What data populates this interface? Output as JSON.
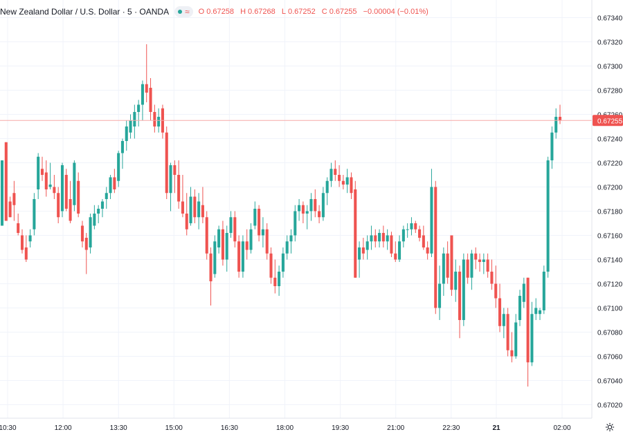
{
  "legend": {
    "title": "New Zealand Dollar / U.S. Dollar · 5 · OANDA",
    "open_label": "O",
    "open": "0.67258",
    "high_label": "H",
    "high": "0.67268",
    "low_label": "L",
    "low": "0.67252",
    "close_label": "C",
    "close": "0.67255",
    "change": "−0.00004 (−0.01%)"
  },
  "colors": {
    "up": "#26a69a",
    "down": "#ef5350",
    "grid": "#f0f3fa",
    "text": "#131722"
  },
  "chart_data": {
    "type": "candlestick",
    "symbol": "NZDUSD",
    "interval": "5",
    "source": "OANDA",
    "ylim": [
      0.6701,
      0.6735
    ],
    "y_ticks": [
      0.6702,
      0.6704,
      0.6706,
      0.6708,
      0.671,
      0.6712,
      0.6714,
      0.6716,
      0.6718,
      0.672,
      0.6722,
      0.6724,
      0.6726,
      0.6728,
      0.673,
      0.6732,
      0.6734
    ],
    "x_ticks": [
      "10:30",
      "12:00",
      "13:30",
      "15:00",
      "16:30",
      "18:00",
      "19:30",
      "21:00",
      "22:30",
      "21",
      "02:00"
    ],
    "last_price": "0.67255",
    "candles": [
      {
        "o": 0.67168,
        "h": 0.67222,
        "l": 0.67168,
        "c": 0.67222
      },
      {
        "o": 0.67237,
        "h": 0.67237,
        "l": 0.67172,
        "c": 0.67172
      },
      {
        "o": 0.67188,
        "h": 0.67192,
        "l": 0.67175,
        "c": 0.67175
      },
      {
        "o": 0.67195,
        "h": 0.67205,
        "l": 0.67172,
        "c": 0.67185
      },
      {
        "o": 0.6717,
        "h": 0.67178,
        "l": 0.6716,
        "c": 0.67162
      },
      {
        "o": 0.6716,
        "h": 0.67165,
        "l": 0.67145,
        "c": 0.67148
      },
      {
        "o": 0.6715,
        "h": 0.6716,
        "l": 0.67138,
        "c": 0.6714
      },
      {
        "o": 0.67155,
        "h": 0.67165,
        "l": 0.6715,
        "c": 0.6716
      },
      {
        "o": 0.67165,
        "h": 0.67195,
        "l": 0.6716,
        "c": 0.6719
      },
      {
        "o": 0.67198,
        "h": 0.67228,
        "l": 0.6719,
        "c": 0.67225
      },
      {
        "o": 0.67215,
        "h": 0.67225,
        "l": 0.67205,
        "c": 0.6721
      },
      {
        "o": 0.67212,
        "h": 0.67222,
        "l": 0.67192,
        "c": 0.67198
      },
      {
        "o": 0.672,
        "h": 0.6722,
        "l": 0.67198,
        "c": 0.67202
      },
      {
        "o": 0.672,
        "h": 0.6721,
        "l": 0.6719,
        "c": 0.67195
      },
      {
        "o": 0.67195,
        "h": 0.672,
        "l": 0.6717,
        "c": 0.67175
      },
      {
        "o": 0.6718,
        "h": 0.6722,
        "l": 0.67175,
        "c": 0.67218
      },
      {
        "o": 0.6721,
        "h": 0.67215,
        "l": 0.6718,
        "c": 0.67182
      },
      {
        "o": 0.6719,
        "h": 0.67205,
        "l": 0.6717,
        "c": 0.67172
      },
      {
        "o": 0.67185,
        "h": 0.67222,
        "l": 0.6718,
        "c": 0.6722
      },
      {
        "o": 0.67205,
        "h": 0.67212,
        "l": 0.67175,
        "c": 0.67178
      },
      {
        "o": 0.67168,
        "h": 0.67172,
        "l": 0.6715,
        "c": 0.67155
      },
      {
        "o": 0.67158,
        "h": 0.67162,
        "l": 0.67128,
        "c": 0.67148
      },
      {
        "o": 0.6715,
        "h": 0.67178,
        "l": 0.67145,
        "c": 0.67175
      },
      {
        "o": 0.67168,
        "h": 0.67185,
        "l": 0.67165,
        "c": 0.67178
      },
      {
        "o": 0.67178,
        "h": 0.67185,
        "l": 0.6717,
        "c": 0.67182
      },
      {
        "o": 0.67182,
        "h": 0.6719,
        "l": 0.67175,
        "c": 0.67188
      },
      {
        "o": 0.6719,
        "h": 0.672,
        "l": 0.67182,
        "c": 0.67195
      },
      {
        "o": 0.67195,
        "h": 0.6721,
        "l": 0.6719,
        "c": 0.67208
      },
      {
        "o": 0.67208,
        "h": 0.67215,
        "l": 0.67195,
        "c": 0.67198
      },
      {
        "o": 0.67205,
        "h": 0.6723,
        "l": 0.672,
        "c": 0.67228
      },
      {
        "o": 0.67228,
        "h": 0.6724,
        "l": 0.67215,
        "c": 0.67238
      },
      {
        "o": 0.67238,
        "h": 0.67255,
        "l": 0.6723,
        "c": 0.6725
      },
      {
        "o": 0.67245,
        "h": 0.6726,
        "l": 0.6724,
        "c": 0.67255
      },
      {
        "o": 0.6725,
        "h": 0.67268,
        "l": 0.6724,
        "c": 0.67262
      },
      {
        "o": 0.67262,
        "h": 0.67272,
        "l": 0.6725,
        "c": 0.67268
      },
      {
        "o": 0.67268,
        "h": 0.67288,
        "l": 0.67255,
        "c": 0.67285
      },
      {
        "o": 0.67285,
        "h": 0.67318,
        "l": 0.6727,
        "c": 0.67278
      },
      {
        "o": 0.67282,
        "h": 0.6729,
        "l": 0.67255,
        "c": 0.67262
      },
      {
        "o": 0.67262,
        "h": 0.67268,
        "l": 0.67245,
        "c": 0.6725
      },
      {
        "o": 0.6725,
        "h": 0.67265,
        "l": 0.67245,
        "c": 0.67258
      },
      {
        "o": 0.67265,
        "h": 0.67268,
        "l": 0.6724,
        "c": 0.67245
      },
      {
        "o": 0.67245,
        "h": 0.6725,
        "l": 0.6719,
        "c": 0.67195
      },
      {
        "o": 0.67195,
        "h": 0.6722,
        "l": 0.6718,
        "c": 0.67218
      },
      {
        "o": 0.67218,
        "h": 0.67222,
        "l": 0.67195,
        "c": 0.6721
      },
      {
        "o": 0.6721,
        "h": 0.67222,
        "l": 0.67182,
        "c": 0.67188
      },
      {
        "o": 0.67188,
        "h": 0.6721,
        "l": 0.67175,
        "c": 0.67178
      },
      {
        "o": 0.67178,
        "h": 0.67195,
        "l": 0.6716,
        "c": 0.67165
      },
      {
        "o": 0.6717,
        "h": 0.672,
        "l": 0.67168,
        "c": 0.67192
      },
      {
        "o": 0.67192,
        "h": 0.67198,
        "l": 0.6717,
        "c": 0.67175
      },
      {
        "o": 0.67175,
        "h": 0.67195,
        "l": 0.67165,
        "c": 0.67188
      },
      {
        "o": 0.67185,
        "h": 0.672,
        "l": 0.6717,
        "c": 0.67175
      },
      {
        "o": 0.67175,
        "h": 0.6718,
        "l": 0.6714,
        "c": 0.67145
      },
      {
        "o": 0.67145,
        "h": 0.6715,
        "l": 0.67102,
        "c": 0.67122
      },
      {
        "o": 0.67128,
        "h": 0.6716,
        "l": 0.67125,
        "c": 0.67155
      },
      {
        "o": 0.6715,
        "h": 0.67168,
        "l": 0.67145,
        "c": 0.67165
      },
      {
        "o": 0.67165,
        "h": 0.67172,
        "l": 0.67135,
        "c": 0.6714
      },
      {
        "o": 0.6714,
        "h": 0.67168,
        "l": 0.6713,
        "c": 0.67162
      },
      {
        "o": 0.67162,
        "h": 0.6718,
        "l": 0.67158,
        "c": 0.67175
      },
      {
        "o": 0.67175,
        "h": 0.6718,
        "l": 0.6715,
        "c": 0.67155
      },
      {
        "o": 0.67155,
        "h": 0.6716,
        "l": 0.67125,
        "c": 0.6713
      },
      {
        "o": 0.6713,
        "h": 0.6716,
        "l": 0.67125,
        "c": 0.67155
      },
      {
        "o": 0.67155,
        "h": 0.67165,
        "l": 0.6714,
        "c": 0.67148
      },
      {
        "o": 0.67148,
        "h": 0.6717,
        "l": 0.67145,
        "c": 0.67165
      },
      {
        "o": 0.67168,
        "h": 0.67188,
        "l": 0.67165,
        "c": 0.67182
      },
      {
        "o": 0.67182,
        "h": 0.67185,
        "l": 0.67155,
        "c": 0.6716
      },
      {
        "o": 0.6716,
        "h": 0.67175,
        "l": 0.6715,
        "c": 0.67165
      },
      {
        "o": 0.67165,
        "h": 0.6717,
        "l": 0.6714,
        "c": 0.67145
      },
      {
        "o": 0.67145,
        "h": 0.6715,
        "l": 0.6712,
        "c": 0.67125
      },
      {
        "o": 0.67125,
        "h": 0.6714,
        "l": 0.67112,
        "c": 0.67118
      },
      {
        "o": 0.67118,
        "h": 0.67135,
        "l": 0.6711,
        "c": 0.6713
      },
      {
        "o": 0.6713,
        "h": 0.6715,
        "l": 0.67125,
        "c": 0.67145
      },
      {
        "o": 0.67145,
        "h": 0.6716,
        "l": 0.6714,
        "c": 0.67155
      },
      {
        "o": 0.67155,
        "h": 0.67165,
        "l": 0.67145,
        "c": 0.6716
      },
      {
        "o": 0.6716,
        "h": 0.67185,
        "l": 0.67155,
        "c": 0.6718
      },
      {
        "o": 0.6718,
        "h": 0.6719,
        "l": 0.67172,
        "c": 0.67185
      },
      {
        "o": 0.67185,
        "h": 0.67188,
        "l": 0.6717,
        "c": 0.67178
      },
      {
        "o": 0.67178,
        "h": 0.67185,
        "l": 0.67165,
        "c": 0.6718
      },
      {
        "o": 0.6718,
        "h": 0.67195,
        "l": 0.67172,
        "c": 0.6719
      },
      {
        "o": 0.6719,
        "h": 0.67198,
        "l": 0.67175,
        "c": 0.6718
      },
      {
        "o": 0.6718,
        "h": 0.67185,
        "l": 0.6717,
        "c": 0.67175
      },
      {
        "o": 0.67175,
        "h": 0.672,
        "l": 0.67172,
        "c": 0.67195
      },
      {
        "o": 0.67195,
        "h": 0.67208,
        "l": 0.67185,
        "c": 0.67205
      },
      {
        "o": 0.67205,
        "h": 0.6722,
        "l": 0.672,
        "c": 0.67215
      },
      {
        "o": 0.67215,
        "h": 0.67222,
        "l": 0.67205,
        "c": 0.6721
      },
      {
        "o": 0.6721,
        "h": 0.67218,
        "l": 0.672,
        "c": 0.67205
      },
      {
        "o": 0.67205,
        "h": 0.6721,
        "l": 0.67198,
        "c": 0.67202
      },
      {
        "o": 0.67202,
        "h": 0.67215,
        "l": 0.67195,
        "c": 0.67208
      },
      {
        "o": 0.67208,
        "h": 0.67212,
        "l": 0.6719,
        "c": 0.67195
      },
      {
        "o": 0.67198,
        "h": 0.67205,
        "l": 0.67125,
        "c": 0.67125
      },
      {
        "o": 0.6714,
        "h": 0.67155,
        "l": 0.67125,
        "c": 0.6715
      },
      {
        "o": 0.6715,
        "h": 0.67158,
        "l": 0.6714,
        "c": 0.67145
      },
      {
        "o": 0.67148,
        "h": 0.6716,
        "l": 0.6714,
        "c": 0.67155
      },
      {
        "o": 0.67155,
        "h": 0.67168,
        "l": 0.67148,
        "c": 0.6716
      },
      {
        "o": 0.6716,
        "h": 0.67165,
        "l": 0.6715,
        "c": 0.67155
      },
      {
        "o": 0.67155,
        "h": 0.67165,
        "l": 0.6715,
        "c": 0.67162
      },
      {
        "o": 0.67162,
        "h": 0.67168,
        "l": 0.6715,
        "c": 0.67155
      },
      {
        "o": 0.67155,
        "h": 0.67165,
        "l": 0.67148,
        "c": 0.6716
      },
      {
        "o": 0.6716,
        "h": 0.67163,
        "l": 0.67142,
        "c": 0.67145
      },
      {
        "o": 0.67145,
        "h": 0.67155,
        "l": 0.67138,
        "c": 0.6714
      },
      {
        "o": 0.6714,
        "h": 0.6716,
        "l": 0.67138,
        "c": 0.67155
      },
      {
        "o": 0.67155,
        "h": 0.67168,
        "l": 0.6715,
        "c": 0.67165
      },
      {
        "o": 0.67165,
        "h": 0.6717,
        "l": 0.67158,
        "c": 0.67165
      },
      {
        "o": 0.67165,
        "h": 0.67175,
        "l": 0.6716,
        "c": 0.6717
      },
      {
        "o": 0.6717,
        "h": 0.67172,
        "l": 0.67162,
        "c": 0.67165
      },
      {
        "o": 0.67165,
        "h": 0.67168,
        "l": 0.67155,
        "c": 0.67158
      },
      {
        "o": 0.6716,
        "h": 0.67168,
        "l": 0.67148,
        "c": 0.6715
      },
      {
        "o": 0.6715,
        "h": 0.67155,
        "l": 0.6714,
        "c": 0.67145
      },
      {
        "o": 0.67145,
        "h": 0.67215,
        "l": 0.67142,
        "c": 0.672
      },
      {
        "o": 0.672,
        "h": 0.67205,
        "l": 0.67095,
        "c": 0.671
      },
      {
        "o": 0.671,
        "h": 0.67135,
        "l": 0.6709,
        "c": 0.6712
      },
      {
        "o": 0.6712,
        "h": 0.6715,
        "l": 0.6711,
        "c": 0.67145
      },
      {
        "o": 0.67145,
        "h": 0.67155,
        "l": 0.6712,
        "c": 0.67125
      },
      {
        "o": 0.6716,
        "h": 0.6716,
        "l": 0.6711,
        "c": 0.67115
      },
      {
        "o": 0.67115,
        "h": 0.6714,
        "l": 0.67105,
        "c": 0.6713
      },
      {
        "o": 0.6713,
        "h": 0.67135,
        "l": 0.67075,
        "c": 0.6709
      },
      {
        "o": 0.6709,
        "h": 0.67145,
        "l": 0.67085,
        "c": 0.6714
      },
      {
        "o": 0.6714,
        "h": 0.67145,
        "l": 0.6712,
        "c": 0.67125
      },
      {
        "o": 0.67125,
        "h": 0.67148,
        "l": 0.67115,
        "c": 0.67145
      },
      {
        "o": 0.67145,
        "h": 0.6715,
        "l": 0.67132,
        "c": 0.6714
      },
      {
        "o": 0.6714,
        "h": 0.67145,
        "l": 0.6713,
        "c": 0.67138
      },
      {
        "o": 0.67138,
        "h": 0.67145,
        "l": 0.67128,
        "c": 0.6714
      },
      {
        "o": 0.6714,
        "h": 0.67145,
        "l": 0.67125,
        "c": 0.6713
      },
      {
        "o": 0.6713,
        "h": 0.6714,
        "l": 0.67115,
        "c": 0.6712
      },
      {
        "o": 0.6712,
        "h": 0.67135,
        "l": 0.671,
        "c": 0.67108
      },
      {
        "o": 0.67108,
        "h": 0.6712,
        "l": 0.6708,
        "c": 0.67085
      },
      {
        "o": 0.67085,
        "h": 0.671,
        "l": 0.67075,
        "c": 0.67095
      },
      {
        "o": 0.67095,
        "h": 0.671,
        "l": 0.6706,
        "c": 0.67065
      },
      {
        "o": 0.67065,
        "h": 0.6708,
        "l": 0.67055,
        "c": 0.6706
      },
      {
        "o": 0.6706,
        "h": 0.67095,
        "l": 0.67058,
        "c": 0.67088
      },
      {
        "o": 0.6709,
        "h": 0.67115,
        "l": 0.67085,
        "c": 0.6711
      },
      {
        "o": 0.67105,
        "h": 0.67125,
        "l": 0.671,
        "c": 0.6712
      },
      {
        "o": 0.67125,
        "h": 0.67125,
        "l": 0.67035,
        "c": 0.67055
      },
      {
        "o": 0.67055,
        "h": 0.67105,
        "l": 0.67052,
        "c": 0.67095
      },
      {
        "o": 0.67095,
        "h": 0.67108,
        "l": 0.6709,
        "c": 0.671
      },
      {
        "o": 0.67095,
        "h": 0.671,
        "l": 0.6709,
        "c": 0.67098
      },
      {
        "o": 0.67098,
        "h": 0.67135,
        "l": 0.67095,
        "c": 0.6713
      },
      {
        "o": 0.6713,
        "h": 0.67225,
        "l": 0.67125,
        "c": 0.67222
      },
      {
        "o": 0.67222,
        "h": 0.6725,
        "l": 0.67215,
        "c": 0.67245
      },
      {
        "o": 0.67245,
        "h": 0.67265,
        "l": 0.6724,
        "c": 0.67258
      },
      {
        "o": 0.67258,
        "h": 0.67268,
        "l": 0.67252,
        "c": 0.67255
      }
    ]
  }
}
